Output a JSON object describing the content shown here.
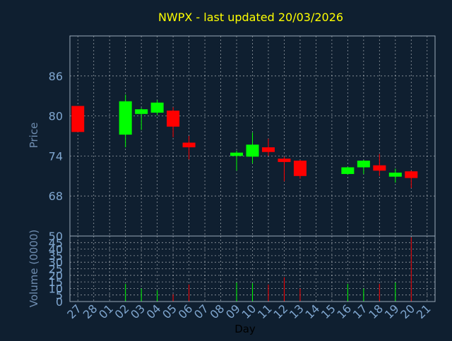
{
  "title": "NWPX - last updated 20/03/2026",
  "colors": {
    "background": "#0f1f30",
    "title": "#ffff00",
    "axis_text": "#7fa6cf",
    "label_text": "#6f8db0",
    "frame": "#9aa8b8",
    "grid": "#ffffff",
    "up": "#00ff00",
    "down": "#ff0000",
    "xlabel": "#000000"
  },
  "chart_data": [
    {
      "type": "candlestick",
      "ylabel": "Price",
      "ylim": [
        62,
        92
      ],
      "yticks": [
        68,
        74,
        80,
        86
      ],
      "grid": true,
      "x": [
        "27",
        "28",
        "01",
        "02",
        "03",
        "04",
        "05",
        "06",
        "07",
        "08",
        "09",
        "10",
        "11",
        "12",
        "13",
        "14",
        "15",
        "16",
        "17",
        "18",
        "19",
        "20",
        "21"
      ],
      "candles": [
        {
          "x": "27",
          "open": 81.5,
          "close": 77.6,
          "high": 81.5,
          "low": 77.6
        },
        {
          "x": "02",
          "open": 77.2,
          "close": 82.2,
          "high": 83.2,
          "low": 75.3
        },
        {
          "x": "03",
          "open": 80.3,
          "close": 81.0,
          "high": 81.2,
          "low": 77.9
        },
        {
          "x": "04",
          "open": 80.5,
          "close": 82.0,
          "high": 82.4,
          "low": 80.1
        },
        {
          "x": "05",
          "open": 80.8,
          "close": 78.4,
          "high": 81.3,
          "low": 76.8
        },
        {
          "x": "06",
          "open": 76.0,
          "close": 75.3,
          "high": 77.0,
          "low": 73.5
        },
        {
          "x": "09",
          "open": 74.0,
          "close": 74.5,
          "high": 74.8,
          "low": 71.8
        },
        {
          "x": "10",
          "open": 73.9,
          "close": 75.7,
          "high": 77.5,
          "low": 72.9
        },
        {
          "x": "11",
          "open": 75.3,
          "close": 74.6,
          "high": 76.6,
          "low": 74.0
        },
        {
          "x": "12",
          "open": 73.6,
          "close": 73.1,
          "high": 73.9,
          "low": 70.2
        },
        {
          "x": "13",
          "open": 73.3,
          "close": 71.0,
          "high": 73.4,
          "low": 70.6
        },
        {
          "x": "16",
          "open": 71.3,
          "close": 72.3,
          "high": 72.4,
          "low": 71.2
        },
        {
          "x": "17",
          "open": 72.3,
          "close": 73.3,
          "high": 73.4,
          "low": 71.3
        },
        {
          "x": "18",
          "open": 72.6,
          "close": 71.8,
          "high": 74.3,
          "low": 71.0
        },
        {
          "x": "19",
          "open": 70.9,
          "close": 71.5,
          "high": 72.1,
          "low": 70.0
        },
        {
          "x": "20",
          "open": 71.7,
          "close": 70.7,
          "high": 71.8,
          "low": 69.2
        }
      ]
    },
    {
      "type": "bar",
      "ylabel": "Volume (0000)",
      "xlabel": "Day",
      "ylim": [
        0,
        50
      ],
      "yticks": [
        0,
        5,
        10,
        15,
        20,
        25,
        30,
        35,
        40,
        45,
        50
      ],
      "grid": true,
      "categories": [
        "27",
        "28",
        "01",
        "02",
        "03",
        "04",
        "05",
        "06",
        "07",
        "08",
        "09",
        "10",
        "11",
        "12",
        "13",
        "14",
        "15",
        "16",
        "17",
        "18",
        "19",
        "20",
        "21"
      ],
      "bars": [
        {
          "x": "02",
          "value": 13.5,
          "direction": "up"
        },
        {
          "x": "03",
          "value": 10,
          "direction": "up"
        },
        {
          "x": "04",
          "value": 8.5,
          "direction": "up"
        },
        {
          "x": "05",
          "value": 5.5,
          "direction": "down"
        },
        {
          "x": "06",
          "value": 13,
          "direction": "down"
        },
        {
          "x": "09",
          "value": 14.5,
          "direction": "up"
        },
        {
          "x": "10",
          "value": 14,
          "direction": "up"
        },
        {
          "x": "11",
          "value": 13,
          "direction": "down"
        },
        {
          "x": "12",
          "value": 18.5,
          "direction": "down"
        },
        {
          "x": "13",
          "value": 10,
          "direction": "down"
        },
        {
          "x": "16",
          "value": 13.5,
          "direction": "up"
        },
        {
          "x": "17",
          "value": 10,
          "direction": "up"
        },
        {
          "x": "18",
          "value": 13.5,
          "direction": "down"
        },
        {
          "x": "19",
          "value": 14.5,
          "direction": "up"
        },
        {
          "x": "20",
          "value": 49,
          "direction": "down"
        }
      ]
    }
  ]
}
